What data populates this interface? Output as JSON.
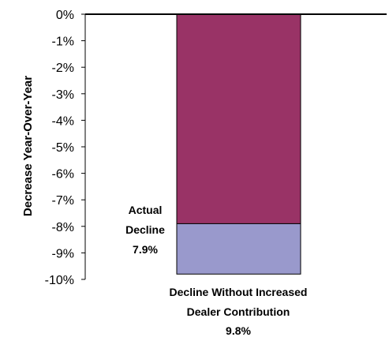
{
  "chart_data": {
    "type": "bar",
    "ylabel": "Decrease Year-Over-Year",
    "ylim": [
      -10,
      0
    ],
    "yticks": [
      "0%",
      "-1%",
      "-2%",
      "-3%",
      "-4%",
      "-5%",
      "-6%",
      "-7%",
      "-8%",
      "-9%",
      "-10%"
    ],
    "grid": false,
    "series": [
      {
        "name": "Actual Decline",
        "value": -7.9,
        "color": "#993366"
      },
      {
        "name": "Decline Without Increased Dealer Contribution",
        "value": -9.8,
        "color": "#9999CC"
      }
    ],
    "annotations": {
      "actual": [
        "Actual",
        "Decline",
        "7.9%"
      ],
      "without": [
        "Decline Without Increased",
        "Dealer Contribution",
        "9.8%"
      ]
    }
  }
}
